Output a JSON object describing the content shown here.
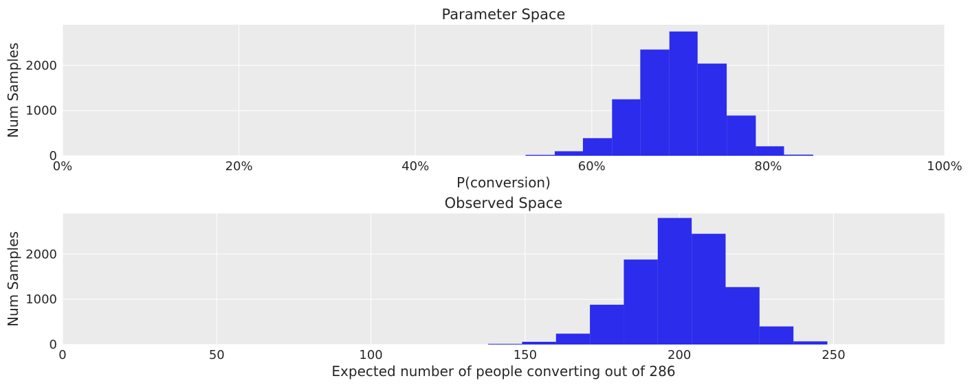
{
  "chart_data": [
    {
      "type": "bar",
      "title": "Parameter Space",
      "xlabel": "P(conversion)",
      "ylabel": "Num Samples",
      "xlim": [
        0,
        1
      ],
      "ylim": [
        0,
        2900
      ],
      "grid": true,
      "x_ticks": [
        {
          "value": 0,
          "label": "0%"
        },
        {
          "value": 0.2,
          "label": "20%"
        },
        {
          "value": 0.4,
          "label": "40%"
        },
        {
          "value": 0.6,
          "label": "60%"
        },
        {
          "value": 0.8,
          "label": "80%"
        },
        {
          "value": 1.0,
          "label": "100%"
        }
      ],
      "y_ticks": [
        {
          "value": 0,
          "label": "0"
        },
        {
          "value": 1000,
          "label": "1000"
        },
        {
          "value": 2000,
          "label": "2000"
        }
      ],
      "bins": [
        {
          "x0": 0.525,
          "x1": 0.558,
          "value": 20
        },
        {
          "x0": 0.558,
          "x1": 0.59,
          "value": 100
        },
        {
          "x0": 0.59,
          "x1": 0.623,
          "value": 390
        },
        {
          "x0": 0.623,
          "x1": 0.655,
          "value": 1250
        },
        {
          "x0": 0.655,
          "x1": 0.688,
          "value": 2350
        },
        {
          "x0": 0.688,
          "x1": 0.72,
          "value": 2750
        },
        {
          "x0": 0.72,
          "x1": 0.753,
          "value": 2040
        },
        {
          "x0": 0.753,
          "x1": 0.786,
          "value": 890
        },
        {
          "x0": 0.786,
          "x1": 0.818,
          "value": 210
        },
        {
          "x0": 0.818,
          "x1": 0.851,
          "value": 25
        }
      ],
      "bar_color": "#2c2cec",
      "plot_background": "#ebebeb"
    },
    {
      "type": "bar",
      "title": "Observed Space",
      "xlabel": "Expected number of people converting out of 286",
      "ylabel": "Num Samples",
      "xlim": [
        0,
        286
      ],
      "ylim": [
        0,
        2900
      ],
      "grid": true,
      "x_ticks": [
        {
          "value": 0,
          "label": "0"
        },
        {
          "value": 50,
          "label": "50"
        },
        {
          "value": 100,
          "label": "100"
        },
        {
          "value": 150,
          "label": "150"
        },
        {
          "value": 200,
          "label": "200"
        },
        {
          "value": 250,
          "label": "250"
        }
      ],
      "y_ticks": [
        {
          "value": 0,
          "label": "0"
        },
        {
          "value": 1000,
          "label": "1000"
        },
        {
          "value": 2000,
          "label": "2000"
        }
      ],
      "bins": [
        {
          "x0": 138,
          "x1": 149,
          "value": 15
        },
        {
          "x0": 149,
          "x1": 160,
          "value": 60
        },
        {
          "x0": 160,
          "x1": 171,
          "value": 240
        },
        {
          "x0": 171,
          "x1": 182,
          "value": 880
        },
        {
          "x0": 182,
          "x1": 193,
          "value": 1880
        },
        {
          "x0": 193,
          "x1": 204,
          "value": 2800
        },
        {
          "x0": 204,
          "x1": 215,
          "value": 2450
        },
        {
          "x0": 215,
          "x1": 226,
          "value": 1270
        },
        {
          "x0": 226,
          "x1": 237,
          "value": 400
        },
        {
          "x0": 237,
          "x1": 248,
          "value": 70
        }
      ],
      "bar_color": "#2c2cec",
      "plot_background": "#ebebeb"
    }
  ]
}
